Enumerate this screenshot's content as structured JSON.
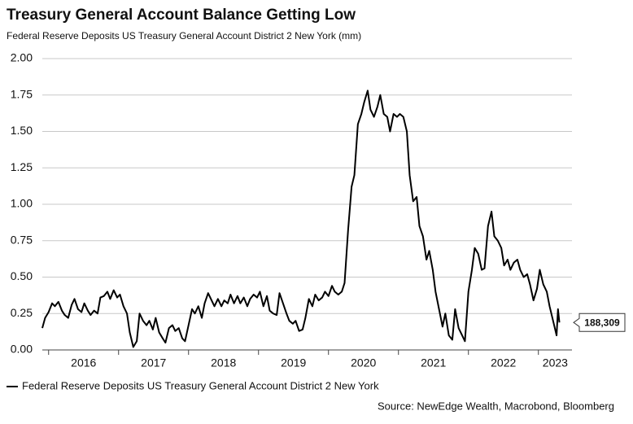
{
  "chart_data": {
    "type": "line",
    "title": "Treasury General Account Balance Getting Low",
    "subtitle": "Federal Reserve Deposits US Treasury General Account District 2 New York (mm)",
    "source": "Source: NewEdge Wealth, Macrobond, Bloomberg",
    "x": [
      2015.91,
      2015.95,
      2016.0,
      2016.05,
      2016.09,
      2016.14,
      2016.19,
      2016.23,
      2016.28,
      2016.33,
      2016.37,
      2016.42,
      2016.47,
      2016.51,
      2016.56,
      2016.6,
      2016.65,
      2016.7,
      2016.74,
      2016.79,
      2016.84,
      2016.88,
      2016.93,
      2016.98,
      2017.02,
      2017.07,
      2017.12,
      2017.16,
      2017.21,
      2017.26,
      2017.3,
      2017.35,
      2017.4,
      2017.44,
      2017.49,
      2017.53,
      2017.58,
      2017.63,
      2017.67,
      2017.72,
      2017.77,
      2017.81,
      2017.86,
      2017.91,
      2017.95,
      2018.0,
      2018.05,
      2018.09,
      2018.14,
      2018.19,
      2018.23,
      2018.28,
      2018.33,
      2018.37,
      2018.42,
      2018.47,
      2018.51,
      2018.56,
      2018.6,
      2018.65,
      2018.7,
      2018.74,
      2018.79,
      2018.84,
      2018.88,
      2018.93,
      2018.98,
      2019.02,
      2019.07,
      2019.12,
      2019.16,
      2019.21,
      2019.26,
      2019.3,
      2019.35,
      2019.4,
      2019.44,
      2019.49,
      2019.53,
      2019.58,
      2019.63,
      2019.67,
      2019.72,
      2019.77,
      2019.81,
      2019.86,
      2019.91,
      2019.95,
      2020.0,
      2020.05,
      2020.09,
      2020.14,
      2020.19,
      2020.23,
      2020.28,
      2020.33,
      2020.37,
      2020.42,
      2020.47,
      2020.51,
      2020.56,
      2020.6,
      2020.65,
      2020.7,
      2020.74,
      2020.79,
      2020.84,
      2020.88,
      2020.93,
      2020.98,
      2021.02,
      2021.07,
      2021.12,
      2021.16,
      2021.21,
      2021.26,
      2021.3,
      2021.35,
      2021.4,
      2021.44,
      2021.49,
      2021.53,
      2021.58,
      2021.63,
      2021.67,
      2021.72,
      2021.77,
      2021.81,
      2021.86,
      2021.91,
      2021.95,
      2022.0,
      2022.05,
      2022.09,
      2022.14,
      2022.19,
      2022.23,
      2022.28,
      2022.33,
      2022.37,
      2022.42,
      2022.47,
      2022.51,
      2022.56,
      2022.6,
      2022.65,
      2022.7,
      2022.74,
      2022.79,
      2022.84,
      2022.88,
      2022.93,
      2022.98,
      2023.02,
      2023.07,
      2023.12,
      2023.16,
      2023.21,
      2023.26,
      2023.28,
      2023.3
    ],
    "series": [
      {
        "name": "Federal Reserve Deposits US Treasury General Account District 2 New York",
        "color": "#000000",
        "values": [
          0.15,
          0.22,
          0.26,
          0.32,
          0.3,
          0.33,
          0.27,
          0.24,
          0.22,
          0.31,
          0.35,
          0.28,
          0.26,
          0.32,
          0.27,
          0.24,
          0.27,
          0.25,
          0.36,
          0.37,
          0.4,
          0.35,
          0.41,
          0.36,
          0.38,
          0.3,
          0.25,
          0.12,
          0.02,
          0.06,
          0.25,
          0.2,
          0.17,
          0.2,
          0.14,
          0.22,
          0.12,
          0.08,
          0.05,
          0.15,
          0.17,
          0.13,
          0.15,
          0.08,
          0.06,
          0.17,
          0.28,
          0.25,
          0.3,
          0.22,
          0.32,
          0.39,
          0.34,
          0.3,
          0.35,
          0.3,
          0.34,
          0.32,
          0.38,
          0.32,
          0.37,
          0.32,
          0.36,
          0.3,
          0.35,
          0.38,
          0.36,
          0.4,
          0.3,
          0.37,
          0.27,
          0.25,
          0.24,
          0.39,
          0.32,
          0.25,
          0.2,
          0.18,
          0.2,
          0.13,
          0.14,
          0.22,
          0.35,
          0.3,
          0.38,
          0.34,
          0.36,
          0.4,
          0.37,
          0.44,
          0.4,
          0.38,
          0.4,
          0.46,
          0.82,
          1.12,
          1.2,
          1.55,
          1.62,
          1.7,
          1.78,
          1.65,
          1.6,
          1.67,
          1.75,
          1.62,
          1.6,
          1.5,
          1.62,
          1.6,
          1.62,
          1.6,
          1.5,
          1.2,
          1.02,
          1.05,
          0.85,
          0.78,
          0.62,
          0.68,
          0.55,
          0.4,
          0.28,
          0.16,
          0.25,
          0.1,
          0.07,
          0.28,
          0.15,
          0.1,
          0.06,
          0.4,
          0.55,
          0.7,
          0.66,
          0.55,
          0.56,
          0.85,
          0.95,
          0.78,
          0.75,
          0.7,
          0.58,
          0.62,
          0.55,
          0.6,
          0.62,
          0.55,
          0.5,
          0.52,
          0.45,
          0.34,
          0.42,
          0.55,
          0.45,
          0.4,
          0.3,
          0.2,
          0.1,
          0.28,
          0.188309
        ],
        "value_labels": [
          null,
          null,
          null,
          null,
          null,
          null,
          null,
          null,
          null,
          null,
          null,
          null,
          null,
          null,
          null,
          null,
          null,
          null,
          null,
          null,
          null,
          null,
          null,
          null,
          null,
          null,
          null,
          null,
          null,
          null,
          null,
          null,
          null,
          null,
          null,
          null,
          null,
          null,
          null,
          null,
          null,
          null,
          null,
          null,
          null,
          null,
          null,
          null,
          null,
          null,
          null,
          null,
          null,
          null,
          null,
          null,
          null,
          null,
          null,
          null,
          null,
          null,
          null,
          null,
          null,
          null,
          null,
          null,
          null,
          null,
          null,
          null,
          null,
          null,
          null,
          null,
          null,
          null,
          null,
          null,
          null,
          null,
          null,
          null,
          null,
          null,
          null,
          null,
          null,
          null,
          null,
          null,
          null,
          null,
          null,
          null,
          null,
          null,
          null,
          null,
          null,
          null,
          null,
          null,
          null,
          null,
          null,
          null,
          null,
          null,
          null,
          null,
          null,
          null,
          null,
          null,
          null,
          null,
          null,
          null,
          null,
          null,
          null,
          null,
          null,
          null,
          null,
          null,
          null,
          null,
          null,
          null,
          null,
          null,
          null,
          null,
          null,
          null,
          null,
          null,
          null,
          null,
          null,
          null,
          null,
          null,
          null,
          null,
          null,
          null,
          null,
          null,
          null,
          null,
          null,
          null,
          null,
          null,
          null,
          null,
          "188,309"
        ]
      }
    ],
    "xlim": [
      2015.91,
      2023.48
    ],
    "xticks": [
      2016,
      2017,
      2018,
      2019,
      2020,
      2021,
      2022,
      2023
    ],
    "ylim": [
      0,
      2
    ],
    "yticks": [
      {
        "value": 0,
        "label": "0.00"
      },
      {
        "value": 0.25,
        "label": "0.25"
      },
      {
        "value": 0.5,
        "label": "0.50"
      },
      {
        "value": 0.75,
        "label": "0.75"
      },
      {
        "value": 1,
        "label": "1.00"
      },
      {
        "value": 1.25,
        "label": "1.25"
      },
      {
        "value": 1.5,
        "label": "1.50"
      },
      {
        "value": 1.75,
        "label": "1.75"
      },
      {
        "value": 2,
        "label": "2.00"
      }
    ],
    "grid": true
  }
}
